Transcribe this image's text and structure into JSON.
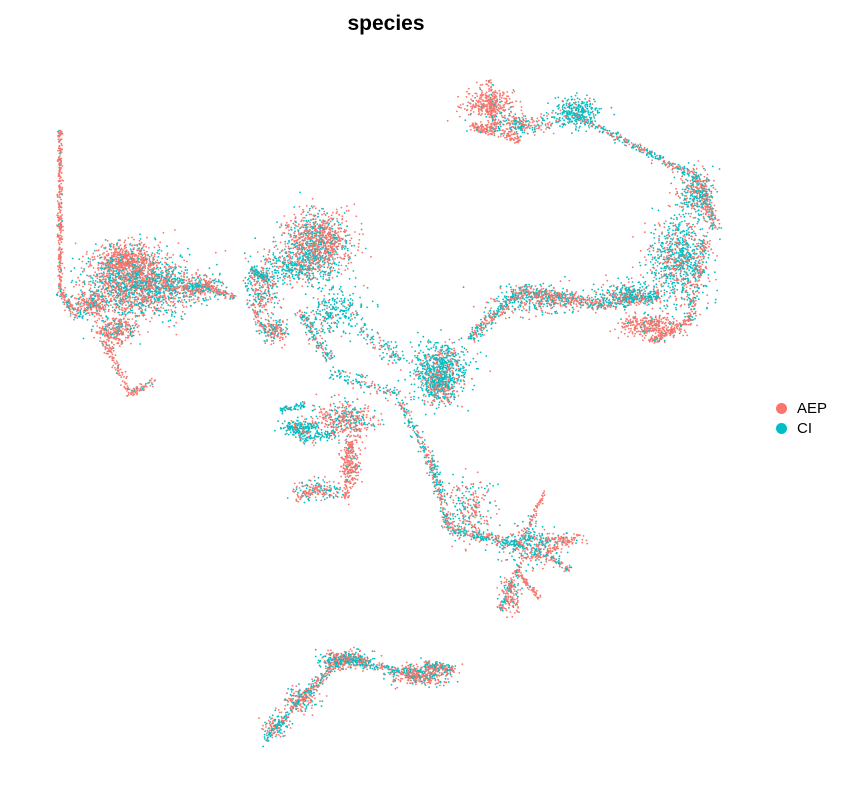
{
  "chart_data": {
    "type": "scatter",
    "title": "species",
    "xlabel": "",
    "ylabel": "",
    "axes_shown": false,
    "grid": false,
    "legend_position": "right",
    "point_size": "small",
    "series": [
      {
        "name": "AEP",
        "color": "#F8766D"
      },
      {
        "name": "CI",
        "color": "#00BFC4"
      }
    ]
  }
}
